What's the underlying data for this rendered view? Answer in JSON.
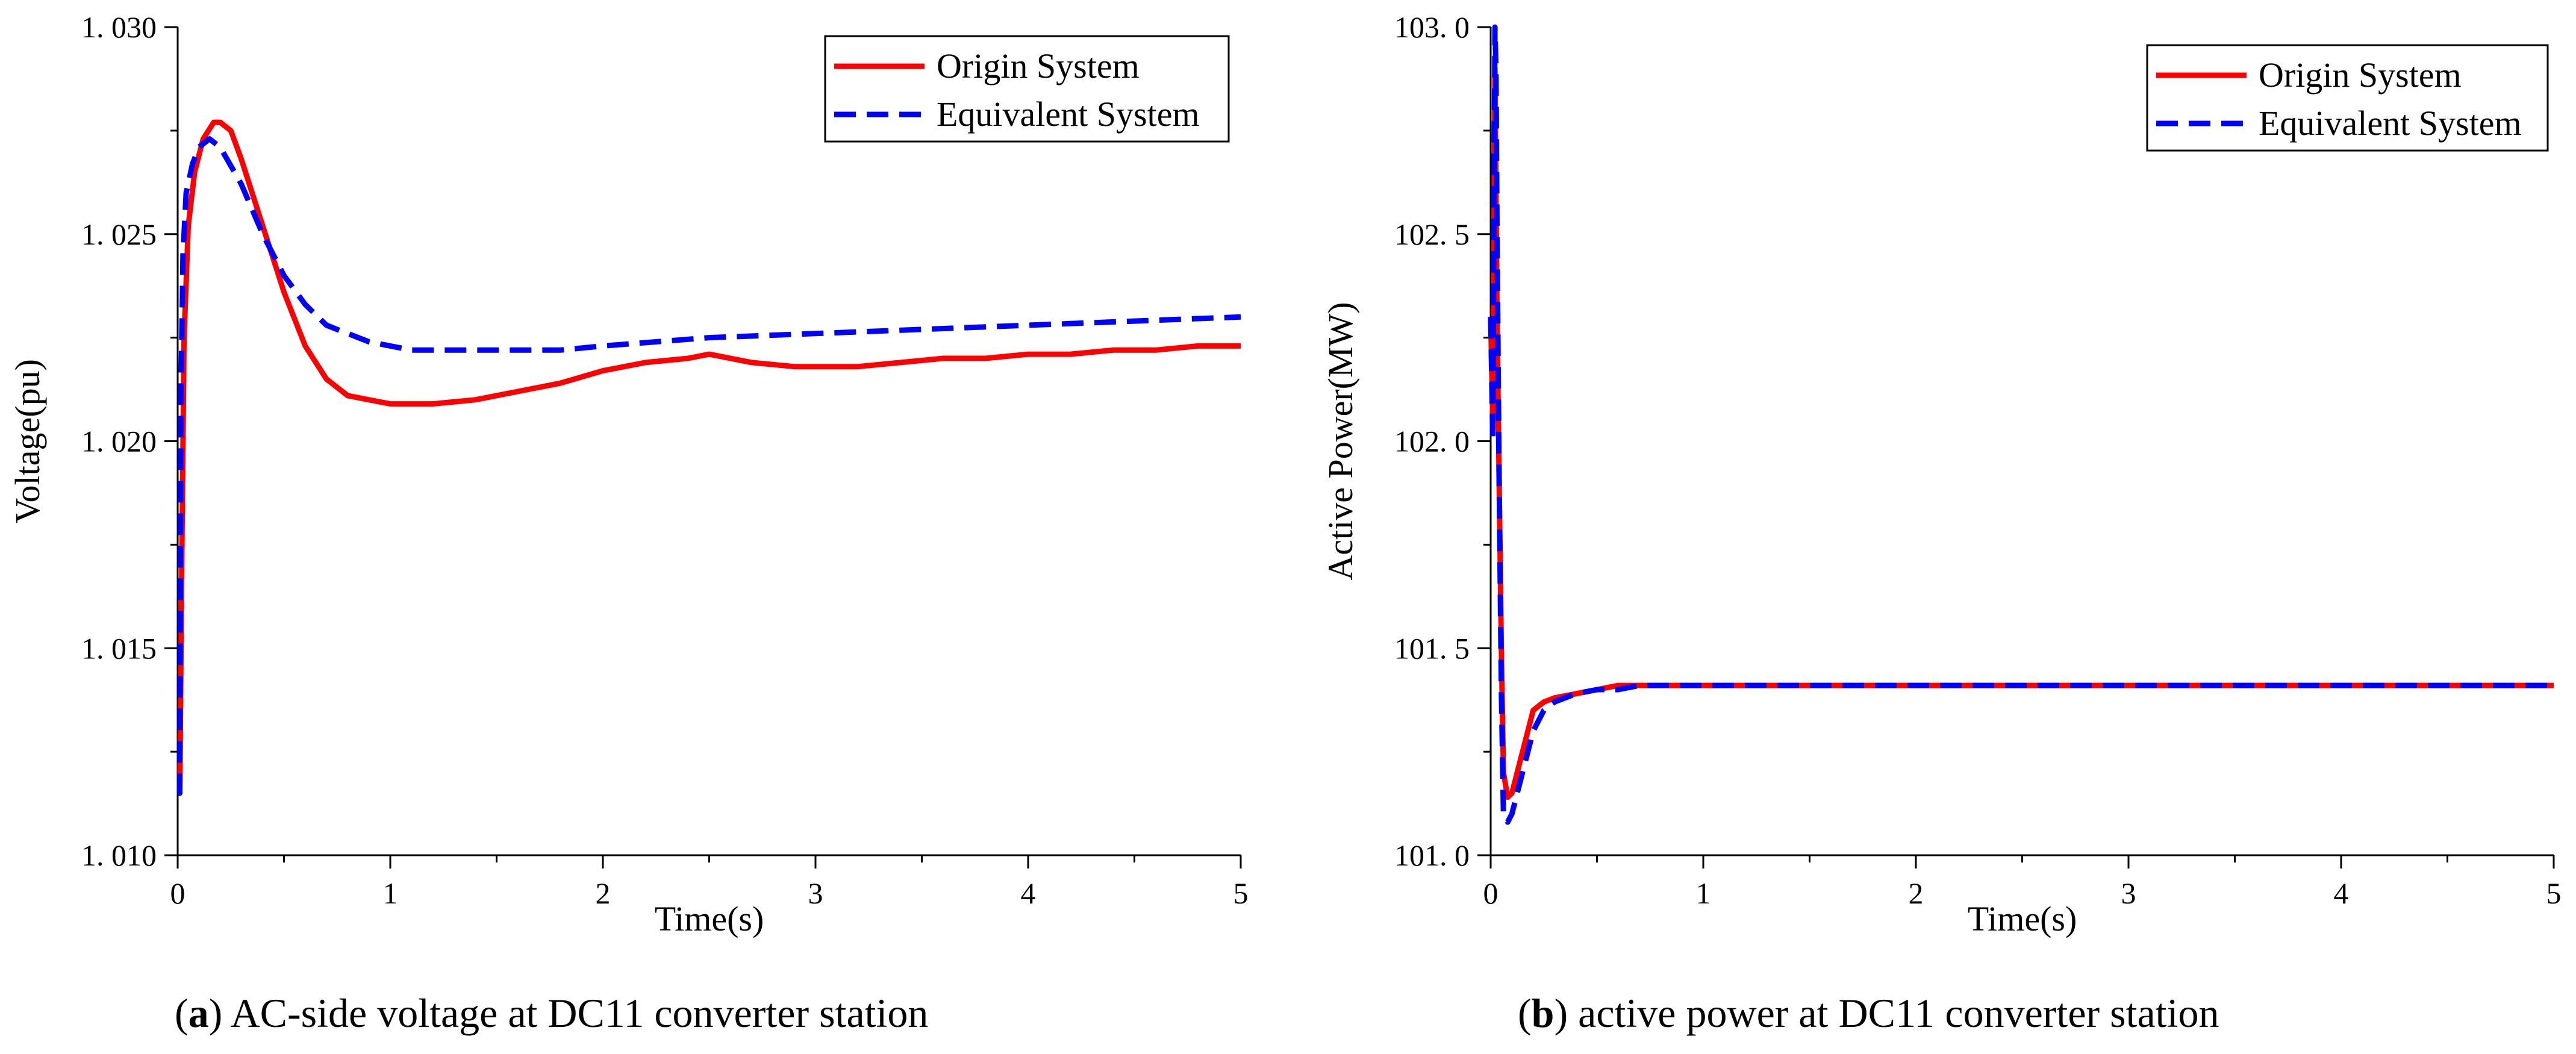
{
  "chart_data": [
    {
      "type": "line",
      "panel": "a",
      "xlabel": "Time(s)",
      "ylabel": "Voltage(pu)",
      "xlim": [
        0,
        5
      ],
      "ylim": [
        1.01,
        1.03
      ],
      "x_ticks": [
        0,
        1,
        2,
        3,
        4,
        5
      ],
      "x_tick_labels": [
        "0",
        "1",
        "2",
        "3",
        "4",
        "5"
      ],
      "y_ticks": [
        1.01,
        1.015,
        1.02,
        1.025,
        1.03
      ],
      "y_tick_labels": [
        "1. 010",
        "1. 015",
        "1. 020",
        "1. 025",
        "1. 030"
      ],
      "legend_position": "top-right",
      "caption_letter": "a",
      "caption_text": "AC-side voltage at DC11 converter station",
      "series": [
        {
          "name": "Origin System",
          "color": "#ff0000",
          "style": "solid",
          "x": [
            0,
            0.01,
            0.02,
            0.03,
            0.05,
            0.08,
            0.12,
            0.17,
            0.2,
            0.25,
            0.3,
            0.4,
            0.5,
            0.6,
            0.7,
            0.8,
            0.9,
            1.0,
            1.1,
            1.2,
            1.4,
            1.6,
            1.8,
            2.0,
            2.2,
            2.4,
            2.5,
            2.7,
            2.9,
            3.0,
            3.2,
            3.4,
            3.6,
            3.8,
            4.0,
            4.2,
            4.4,
            4.6,
            4.8,
            5.0
          ],
          "values": [
            1.0115,
            1.0115,
            1.0175,
            1.0225,
            1.0252,
            1.0265,
            1.0273,
            1.0277,
            1.0277,
            1.0275,
            1.0268,
            1.0252,
            1.0236,
            1.0223,
            1.0215,
            1.0211,
            1.021,
            1.0209,
            1.0209,
            1.0209,
            1.021,
            1.0212,
            1.0214,
            1.0217,
            1.0219,
            1.022,
            1.0221,
            1.0219,
            1.0218,
            1.0218,
            1.0218,
            1.0219,
            1.022,
            1.022,
            1.0221,
            1.0221,
            1.0222,
            1.0222,
            1.0223,
            1.0223
          ]
        },
        {
          "name": "Equivalent System",
          "color": "#0000ff",
          "style": "dashed",
          "x": [
            0,
            0.01,
            0.015,
            0.025,
            0.04,
            0.07,
            0.1,
            0.15,
            0.2,
            0.3,
            0.4,
            0.5,
            0.6,
            0.7,
            0.8,
            0.9,
            1.0,
            1.1,
            1.2,
            1.4,
            1.6,
            1.8,
            2.0,
            2.5,
            3.0,
            3.5,
            4.0,
            4.5,
            5.0
          ],
          "values": [
            1.0115,
            1.0115,
            1.021,
            1.0245,
            1.026,
            1.0267,
            1.0271,
            1.0273,
            1.0271,
            1.0262,
            1.025,
            1.024,
            1.0233,
            1.0228,
            1.0226,
            1.0224,
            1.0223,
            1.0222,
            1.0222,
            1.0222,
            1.0222,
            1.0222,
            1.0223,
            1.0225,
            1.0226,
            1.0227,
            1.0228,
            1.0229,
            1.023
          ]
        }
      ]
    },
    {
      "type": "line",
      "panel": "b",
      "xlabel": "Time(s)",
      "ylabel": "Active Power(MW)",
      "xlim": [
        0,
        5
      ],
      "ylim": [
        101.0,
        103.0
      ],
      "x_ticks": [
        0,
        1,
        2,
        3,
        4,
        5
      ],
      "x_tick_labels": [
        "0",
        "1",
        "2",
        "3",
        "4",
        "5"
      ],
      "y_ticks": [
        101.0,
        101.5,
        102.0,
        102.5,
        103.0
      ],
      "y_tick_labels": [
        "101. 0",
        "101. 5",
        "102. 0",
        "102. 5",
        "103. 0"
      ],
      "legend_position": "top-right",
      "caption_letter": "b",
      "caption_text": "active power at DC11 converter station",
      "series": [
        {
          "name": "Origin System",
          "color": "#ff0000",
          "style": "solid",
          "x": [
            0,
            0.01,
            0.02,
            0.03,
            0.04,
            0.05,
            0.06,
            0.08,
            0.1,
            0.15,
            0.2,
            0.25,
            0.3,
            0.4,
            0.5,
            0.6,
            0.7,
            0.8,
            1.0,
            1.2,
            1.5,
            2.0,
            2.5,
            3.0,
            4.0,
            5.0
          ],
          "values": [
            102.3,
            102.05,
            102.9,
            102.3,
            101.9,
            101.5,
            101.2,
            101.14,
            101.15,
            101.25,
            101.35,
            101.37,
            101.38,
            101.39,
            101.4,
            101.41,
            101.41,
            101.41,
            101.41,
            101.41,
            101.41,
            101.41,
            101.41,
            101.41,
            101.41,
            101.41
          ]
        },
        {
          "name": "Equivalent System",
          "color": "#0000ff",
          "style": "dashed",
          "x": [
            0,
            0.01,
            0.015,
            0.02,
            0.025,
            0.03,
            0.04,
            0.05,
            0.06,
            0.08,
            0.1,
            0.15,
            0.2,
            0.25,
            0.3,
            0.4,
            0.5,
            0.6,
            0.7,
            0.8,
            1.0,
            1.2,
            1.5,
            2.0,
            2.5,
            3.0,
            4.0,
            5.0
          ],
          "values": [
            102.3,
            102.0,
            102.5,
            103.0,
            102.9,
            102.5,
            101.9,
            101.4,
            101.1,
            101.08,
            101.1,
            101.2,
            101.3,
            101.35,
            101.37,
            101.39,
            101.4,
            101.4,
            101.41,
            101.41,
            101.41,
            101.41,
            101.41,
            101.41,
            101.41,
            101.41,
            101.41,
            101.41
          ]
        }
      ]
    }
  ]
}
